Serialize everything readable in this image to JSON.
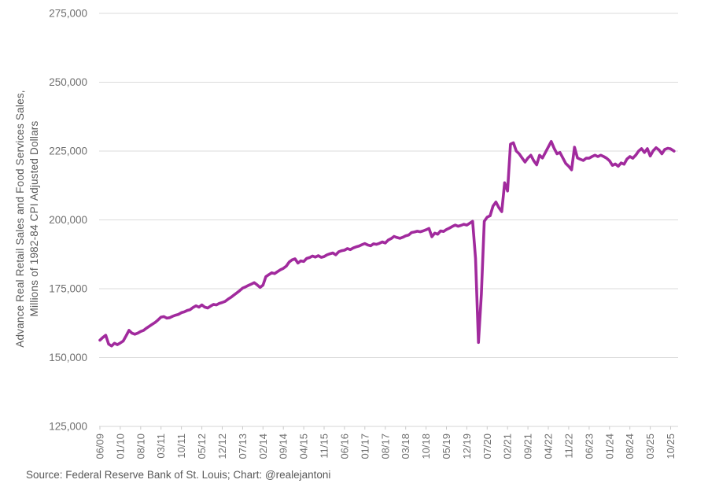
{
  "y_axis": {
    "title_line1": "Advance Real Retail Sales and Food Services Sales,",
    "title_line2": "Millions of 1982-84 CPI Adjusted Dollars"
  },
  "source": "Source: Federal Reserve Bank of St. Louis; Chart: @realejantoni",
  "colors": {
    "line": "#A12A9D",
    "gridline": "#dbdbdb",
    "axis_line": "#d6d6d6",
    "tick_mark": "#c9c9c9",
    "tick_text": "#6f6f6f",
    "label_text": "#595959",
    "background": "#ffffff"
  },
  "chart_data": {
    "type": "line",
    "title": "",
    "xlabel": "",
    "ylabel": "Advance Real Retail Sales and Food Services Sales, Millions of 1982-84 CPI Adjusted Dollars",
    "series_name": "Advance Real Retail and Food Services Sales (CPI adjusted)",
    "frequency": "monthly",
    "x_start": "06/2009",
    "x_end": "12/2025",
    "ylim": [
      125000,
      275000
    ],
    "y_ticks": [
      125000,
      150000,
      175000,
      200000,
      225000,
      250000,
      275000
    ],
    "x_tick_labels": [
      "06/09",
      "01/10",
      "08/10",
      "03/11",
      "10/11",
      "05/12",
      "12/12",
      "07/13",
      "02/14",
      "09/14",
      "04/15",
      "11/15",
      "06/16",
      "01/17",
      "08/17",
      "03/18",
      "10/18",
      "05/19",
      "12/19",
      "07/20",
      "02/21",
      "09/21",
      "04/22",
      "11/22",
      "06/23",
      "01/24",
      "08/24",
      "03/25",
      "10/25"
    ],
    "x_tick_every": 7,
    "grid": "horizontal",
    "legend": "none",
    "dashed_tail_from_index": 195,
    "values": [
      156300,
      157300,
      158100,
      154900,
      154200,
      155200,
      154700,
      155300,
      156000,
      157900,
      159900,
      158900,
      158500,
      158900,
      159500,
      159900,
      160700,
      161400,
      162100,
      162800,
      163700,
      164700,
      164900,
      164300,
      164500,
      165000,
      165400,
      165700,
      166300,
      166600,
      167100,
      167400,
      168200,
      168800,
      168300,
      169100,
      168300,
      168000,
      168700,
      169300,
      169100,
      169700,
      170000,
      170400,
      171200,
      171900,
      172700,
      173500,
      174300,
      175200,
      175700,
      176200,
      176700,
      177200,
      176400,
      175500,
      176300,
      179400,
      180100,
      180800,
      180500,
      181200,
      181900,
      182400,
      183200,
      184700,
      185500,
      185900,
      184300,
      185100,
      184900,
      186000,
      186300,
      186900,
      186500,
      187000,
      186400,
      186700,
      187300,
      187700,
      188000,
      187300,
      188400,
      188800,
      189000,
      189600,
      189200,
      189800,
      190200,
      190500,
      191000,
      191400,
      190900,
      190600,
      191300,
      191100,
      191500,
      192000,
      191600,
      192700,
      193200,
      194000,
      193600,
      193300,
      193700,
      194200,
      194500,
      195400,
      195600,
      195900,
      195700,
      196000,
      196400,
      196900,
      193900,
      195200,
      194800,
      196000,
      195800,
      196500,
      197000,
      197600,
      198100,
      197700,
      198000,
      198400,
      198100,
      198800,
      199500,
      186000,
      155500,
      173000,
      199500,
      201000,
      201500,
      205000,
      206500,
      204500,
      203000,
      213500,
      210500,
      227500,
      228000,
      225000,
      224000,
      222500,
      221000,
      222500,
      223500,
      221500,
      220000,
      223500,
      222500,
      224500,
      226500,
      228500,
      226000,
      224000,
      224500,
      222500,
      220500,
      219500,
      218200,
      226400,
      222500,
      222000,
      221600,
      222400,
      222400,
      223000,
      223500,
      223000,
      223500,
      223000,
      222400,
      221500,
      219800,
      220300,
      219500,
      220700,
      220200,
      222100,
      223000,
      222400,
      223500,
      225000,
      225900,
      224500,
      225900,
      223200,
      225100,
      226200,
      225400,
      224000,
      225600,
      226000,
      225800,
      225100,
      224300
    ]
  }
}
